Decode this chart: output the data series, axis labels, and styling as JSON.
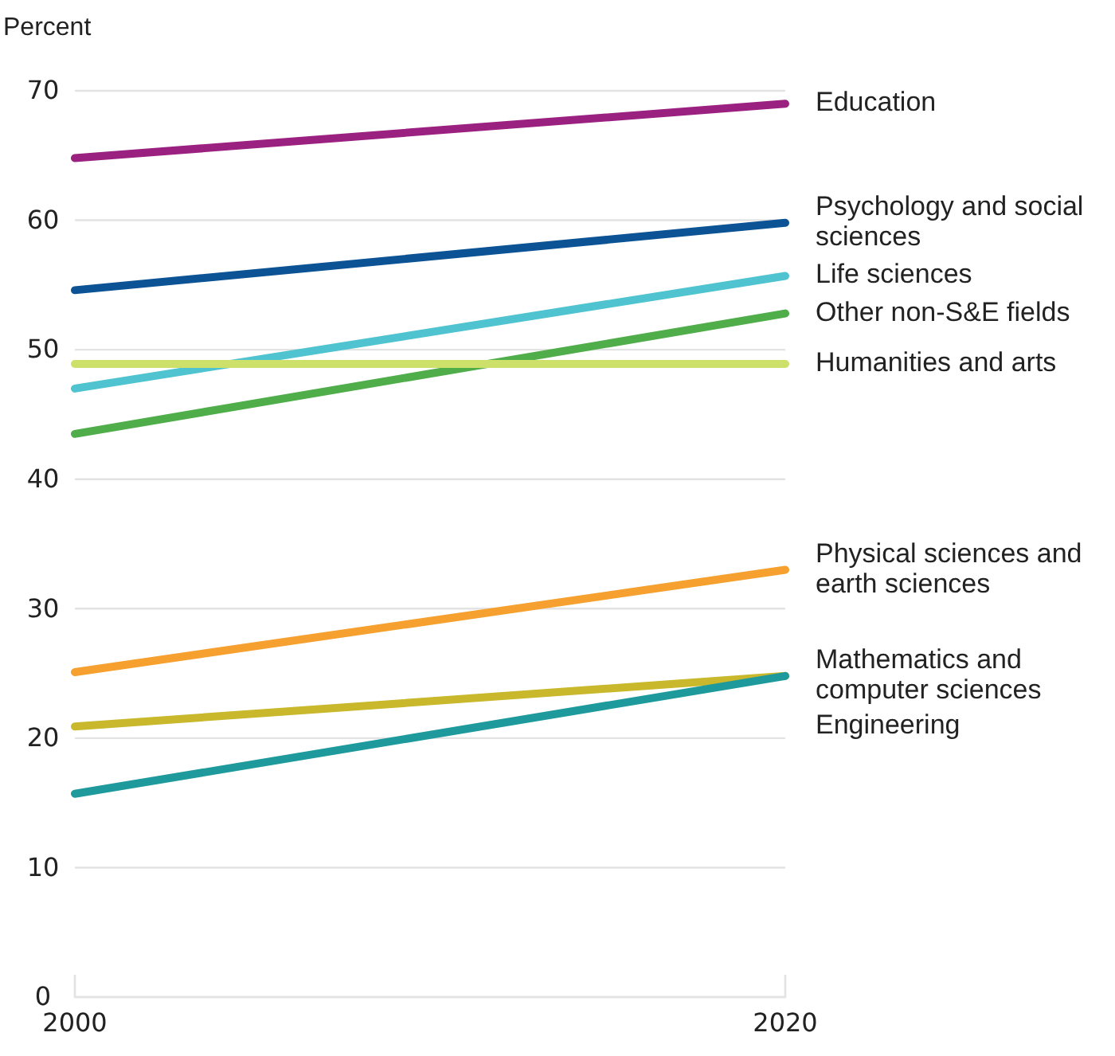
{
  "chart_data": {
    "type": "line",
    "ylabel": "Percent",
    "x": [
      2000,
      2020
    ],
    "xlim": [
      2000,
      2020
    ],
    "xticks": [
      2000,
      2020
    ],
    "ylim": [
      0,
      70
    ],
    "yticks": [
      0,
      10,
      20,
      30,
      40,
      50,
      60,
      70
    ],
    "grid": "y",
    "marker": "none",
    "line_style": "solid",
    "series": [
      {
        "name": "Education",
        "color": "#9b2181",
        "values": [
          64.8,
          69
        ]
      },
      {
        "name": "Psychology and social sciences",
        "color": "#0b5394",
        "values": [
          54.6,
          59.8
        ]
      },
      {
        "name": "Life sciences",
        "color": "#4fc3cf",
        "values": [
          47,
          55.7
        ]
      },
      {
        "name": "Other non-S&E fields",
        "color": "#4fad4a",
        "values": [
          43.5,
          52.8
        ]
      },
      {
        "name": "Humanities and arts",
        "color": "#cde06a",
        "values": [
          48.9,
          48.9
        ]
      },
      {
        "name": "Physical sciences and earth sciences",
        "color": "#f5a02f",
        "values": [
          25.1,
          33
        ]
      },
      {
        "name": "Mathematics and computer sciences",
        "color": "#c9b82c",
        "values": [
          20.9,
          24.8
        ]
      },
      {
        "name": "Engineering",
        "color": "#1f9a9c",
        "values": [
          15.7,
          24.8
        ]
      }
    ]
  }
}
